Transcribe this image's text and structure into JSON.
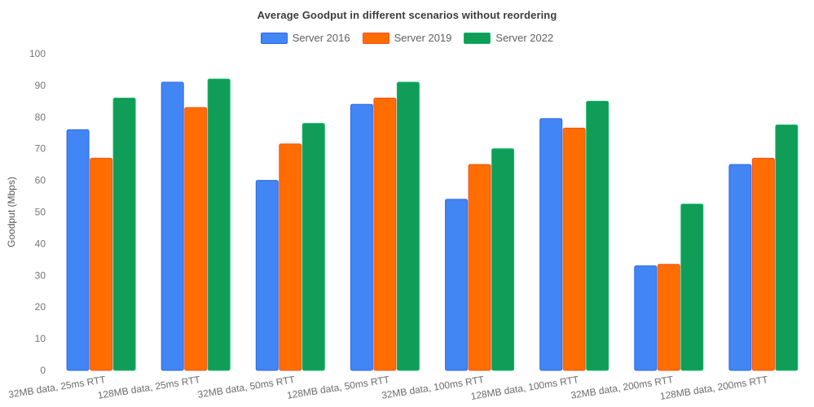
{
  "chart_data": {
    "type": "bar",
    "title": "Average Goodput in different scenarios without reordering",
    "categories": [
      "32MB data, 25ms RTT",
      "128MB data, 25ms RTT",
      "32MB data, 50ms RTT",
      "128MB data, 50ms RTT",
      "32MB data, 100ms RTT",
      "128MB data, 100ms RTT",
      "32MB data, 200ms RTT",
      "128MB data, 200ms RTT"
    ],
    "series": [
      {
        "name": "Server 2016",
        "color": "#4285f4",
        "border_color": "#2a66e8",
        "values": [
          76,
          91,
          60,
          84,
          54,
          79.5,
          33,
          65
        ]
      },
      {
        "name": "Server 2019",
        "color": "#ff6d01",
        "border_color": "#f4511e",
        "values": [
          67,
          83,
          71.5,
          86,
          65,
          76.5,
          33.5,
          67
        ]
      },
      {
        "name": "Server 2022",
        "color": "#0f9d58",
        "border_color": "#11b864",
        "values": [
          86,
          92,
          78,
          91,
          70,
          85,
          52.5,
          77.5
        ]
      }
    ],
    "xlabel": "",
    "ylabel": "Goodput (Mbps)",
    "ylim": [
      0,
      100
    ],
    "ytick_step": 10,
    "grid": false,
    "legend_position": "top"
  }
}
